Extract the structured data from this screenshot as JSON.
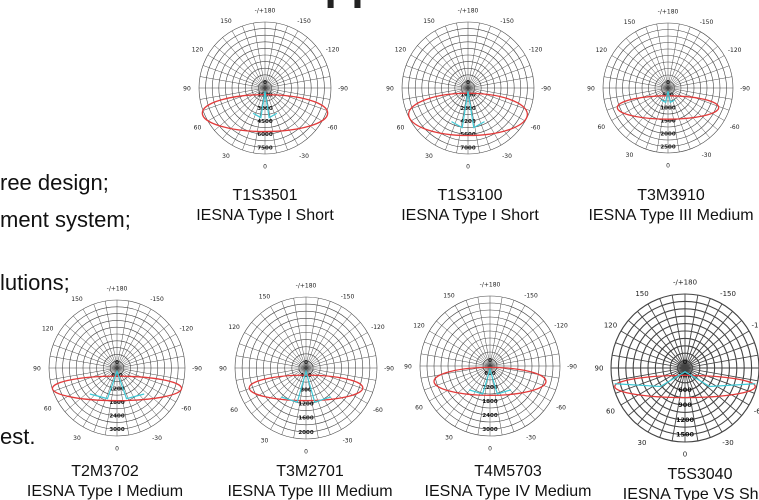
{
  "heading_fragment": "applications",
  "bullets": [
    "ree design;",
    "ment system;",
    "lutions;",
    "est."
  ],
  "angles": [
    "-/+180",
    "-150",
    "150",
    "-120",
    "120",
    "-90",
    "90",
    "-60",
    "60",
    "-30",
    "30",
    "0"
  ],
  "colors": {
    "primary": "#e23b3b",
    "secondary": "#3fc9d6",
    "grid": "#444444"
  },
  "diagrams": [
    {
      "name": "T1S3501",
      "type": "IESNA Type I Short",
      "rings": [
        "0",
        "1500",
        "3000",
        "4500",
        "6000",
        "7500"
      ]
    },
    {
      "name": "T1S3100",
      "type": "IESNA Type I Short",
      "rings": [
        "0",
        "1400",
        "2800",
        "4200",
        "5600",
        "7000"
      ]
    },
    {
      "name": "T3M3910",
      "type": "IESNA Type III Medium",
      "rings": [
        "0",
        "500",
        "1000",
        "1500",
        "2000",
        "2500"
      ]
    },
    {
      "name": "T2M3702",
      "type": "IESNA Type I Medium",
      "rings": [
        "0",
        "600",
        "1200",
        "1800",
        "2400",
        "3000"
      ]
    },
    {
      "name": "T3M2701",
      "type": "IESNA Type III Medium",
      "rings": [
        "0",
        "400",
        "800",
        "1200",
        "1600",
        "2000"
      ]
    },
    {
      "name": "T4M5703",
      "type": "IESNA Type IV Medium",
      "rings": [
        "0",
        "600",
        "1200",
        "1800",
        "2400",
        "3000"
      ]
    },
    {
      "name": "T5S3040",
      "type": "IESNA Type VS Short",
      "rings": [
        "0",
        "300",
        "600",
        "900",
        "1200",
        "1500"
      ]
    }
  ]
}
